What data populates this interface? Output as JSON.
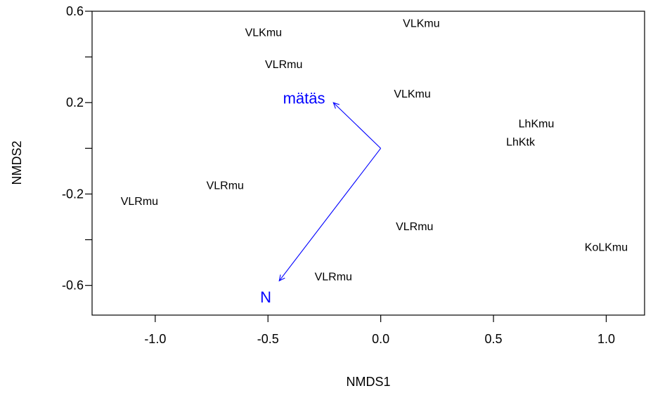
{
  "chart_data": {
    "type": "scatter",
    "title": "",
    "xlabel": "NMDS1",
    "ylabel": "NMDS2",
    "xlim": [
      -1.28,
      1.17
    ],
    "ylim": [
      -0.73,
      0.6
    ],
    "x_ticks": [
      {
        "value": -1.0,
        "label": "-1.0"
      },
      {
        "value": -0.5,
        "label": "-0.5"
      },
      {
        "value": 0.0,
        "label": "0.0"
      },
      {
        "value": 0.5,
        "label": "0.5"
      },
      {
        "value": 1.0,
        "label": "1.0"
      }
    ],
    "y_ticks": [
      {
        "value": 0.6,
        "label": "0.6"
      },
      {
        "value": 0.4,
        "label": ""
      },
      {
        "value": 0.2,
        "label": "0.2"
      },
      {
        "value": 0.0,
        "label": ""
      },
      {
        "value": -0.2,
        "label": "-0.2"
      },
      {
        "value": -0.4,
        "label": ""
      },
      {
        "value": -0.6,
        "label": "-0.6"
      }
    ],
    "points": [
      {
        "label": "VLKmu",
        "x": -0.52,
        "y": 0.51
      },
      {
        "label": "VLKmu",
        "x": 0.18,
        "y": 0.55
      },
      {
        "label": "VLRmu",
        "x": -0.43,
        "y": 0.37
      },
      {
        "label": "VLKmu",
        "x": 0.14,
        "y": 0.24
      },
      {
        "label": "LhKmu",
        "x": 0.69,
        "y": 0.11
      },
      {
        "label": "LhKtk",
        "x": 0.62,
        "y": 0.03
      },
      {
        "label": "VLRmu",
        "x": -0.69,
        "y": -0.16
      },
      {
        "label": "VLRmu",
        "x": -1.07,
        "y": -0.23
      },
      {
        "label": "VLRmu",
        "x": 0.15,
        "y": -0.34
      },
      {
        "label": "KoLKmu",
        "x": 1.0,
        "y": -0.43
      },
      {
        "label": "VLRmu",
        "x": -0.21,
        "y": -0.56
      }
    ],
    "vectors": [
      {
        "label": "mätäs",
        "x": -0.21,
        "y": 0.2,
        "label_x": -0.34,
        "label_y": 0.22,
        "color": "#0000ff"
      },
      {
        "label": "N",
        "x": -0.45,
        "y": -0.58,
        "label_x": -0.51,
        "label_y": -0.65,
        "color": "#0000ff"
      }
    ],
    "origin": {
      "x": 0.0,
      "y": 0.0
    },
    "grid": false,
    "axis_color": "#000000",
    "vector_color": "#0000ff"
  }
}
